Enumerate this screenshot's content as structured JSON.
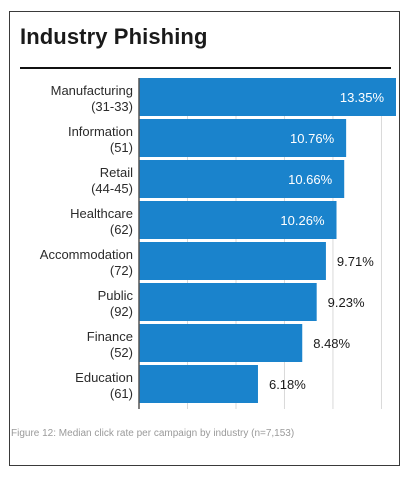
{
  "header": {
    "title": "Industry Phishing"
  },
  "caption": "Figure 12: Median click rate per campaign by industry (n=7,153)",
  "colors": {
    "bar": "#1a83cc",
    "inside_label": "#ffffff",
    "outside_label": "#1a1a1a",
    "grid": "#d9d9d9",
    "axis": "#555555"
  },
  "chart_data": {
    "type": "bar",
    "orientation": "horizontal",
    "title": "Industry Phishing",
    "categories": [
      {
        "name": "Manufacturing",
        "code": "(31-33)"
      },
      {
        "name": "Information",
        "code": "(51)"
      },
      {
        "name": "Retail",
        "code": "(44-45)"
      },
      {
        "name": "Healthcare",
        "code": "(62)"
      },
      {
        "name": "Accommodation",
        "code": "(72)"
      },
      {
        "name": "Public",
        "code": "(92)"
      },
      {
        "name": "Finance",
        "code": "(52)"
      },
      {
        "name": "Education",
        "code": "(61)"
      }
    ],
    "values": [
      13.35,
      10.76,
      10.66,
      10.26,
      9.71,
      9.23,
      8.48,
      6.18
    ],
    "value_labels": [
      "13.35%",
      "10.76%",
      "10.66%",
      "10.26%",
      "9.71%",
      "9.23%",
      "8.48%",
      "6.18%"
    ],
    "xlim": [
      0,
      13.35
    ],
    "unit": "%",
    "grid": true,
    "legend": "none"
  }
}
